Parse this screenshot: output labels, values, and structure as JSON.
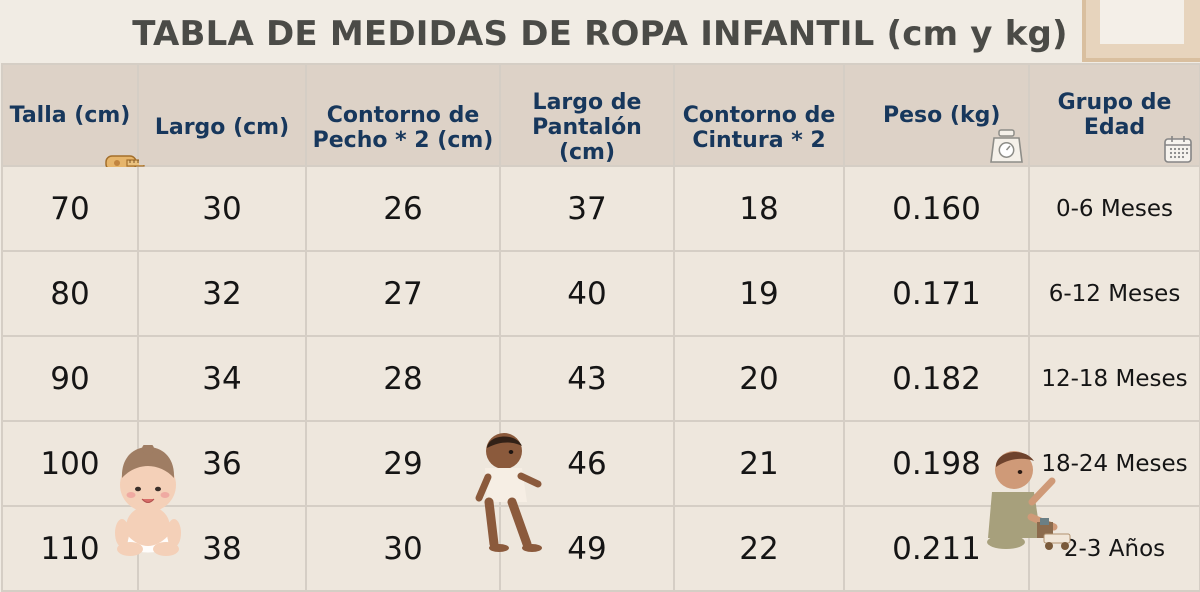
{
  "title": "TABLA DE MEDIDAS DE ROPA INFANTIL (cm y kg)",
  "headers": [
    "Talla (cm)",
    "Largo (cm)",
    "Contorno de\nPecho * 2 (cm)",
    "Largo de\nPantalón (cm)",
    "Contorno de\nCintura * 2",
    "Peso (kg)",
    "Grupo de\nEdad"
  ],
  "rows": [
    [
      "70",
      "30",
      "26",
      "37",
      "18",
      "0.160",
      "0-6 Meses"
    ],
    [
      "80",
      "32",
      "27",
      "40",
      "19",
      "0.171",
      "6-12 Meses"
    ],
    [
      "90",
      "34",
      "28",
      "43",
      "20",
      "0.182",
      "12-18 Meses"
    ],
    [
      "100",
      "36",
      "29",
      "46",
      "21",
      "0.198",
      "18-24 Meses"
    ],
    [
      "110",
      "38",
      "30",
      "49",
      "22",
      "0.211",
      "2-3 Años"
    ]
  ],
  "icons": {
    "talla": "measuring-tape-icon",
    "peso": "scale-icon",
    "edad": "calendar-icon"
  },
  "colors": {
    "background": "#f1ece4",
    "header_background": "#ddd2c7",
    "header_text": "#17375c",
    "cell_background": "#eee7dd",
    "title": "#4b4b47",
    "grid": "#d5cec5"
  }
}
